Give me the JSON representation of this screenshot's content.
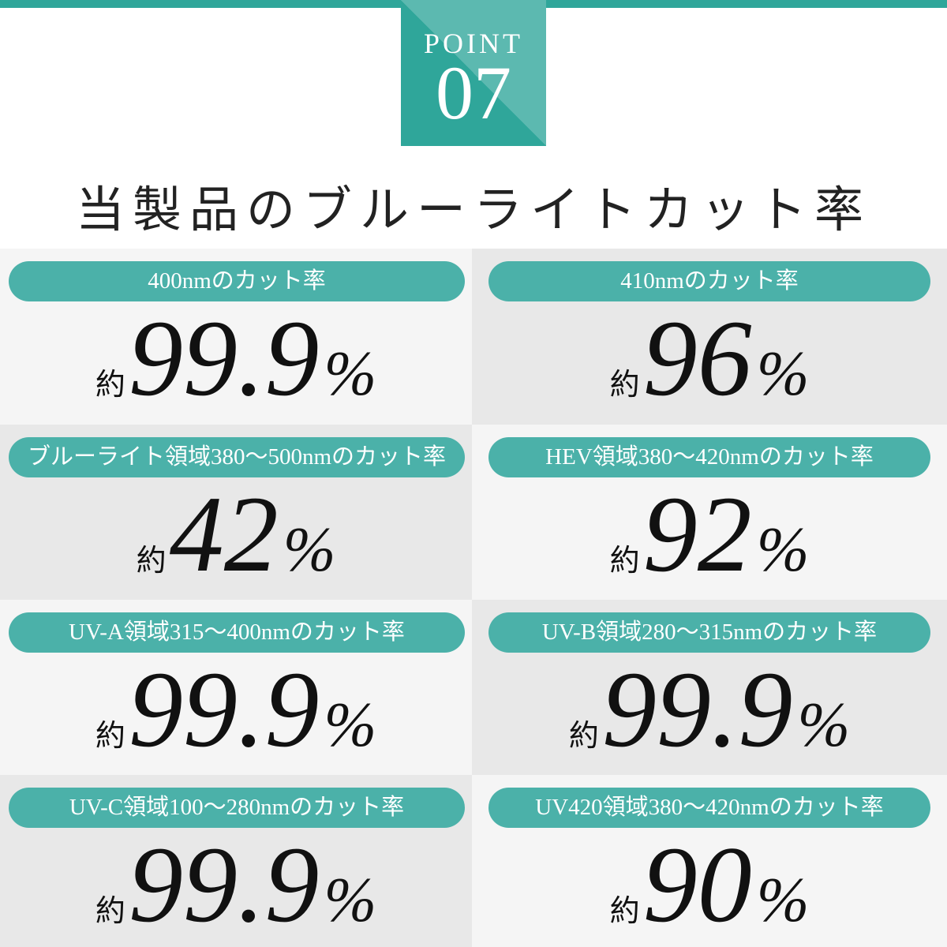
{
  "header": {
    "point_label": "POINT",
    "point_number": "07",
    "title": "当製品のブルーライトカット率"
  },
  "colors": {
    "accent": "#2fa69a",
    "accent_light": "#5cb9b0",
    "pill": "#4bb1a9",
    "cell_light": "#f5f5f5",
    "cell_dark": "#e8e8e8"
  },
  "items": [
    {
      "label": "400nmのカット率",
      "prefix": "約",
      "value": "99.9",
      "unit": "%"
    },
    {
      "label": "410nmのカット率",
      "prefix": "約",
      "value": "96",
      "unit": "%"
    },
    {
      "label": "ブルーライト領域380〜500nmのカット率",
      "prefix": "約",
      "value": "42",
      "unit": "%"
    },
    {
      "label": "HEV領域380〜420nmのカット率",
      "prefix": "約",
      "value": "92",
      "unit": "%"
    },
    {
      "label": "UV-A領域315〜400nmのカット率",
      "prefix": "約",
      "value": "99.9",
      "unit": "%"
    },
    {
      "label": "UV-B領域280〜315nmのカット率",
      "prefix": "約",
      "value": "99.9",
      "unit": "%"
    },
    {
      "label": "UV-C領域100〜280nmのカット率",
      "prefix": "約",
      "value": "99.9",
      "unit": "%"
    },
    {
      "label": "UV420領域380〜420nmのカット率",
      "prefix": "約",
      "value": "90",
      "unit": "%"
    }
  ]
}
